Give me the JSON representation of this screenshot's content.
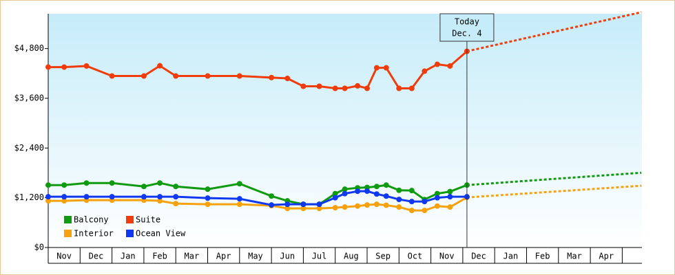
{
  "chart_data": {
    "type": "line",
    "categories": [
      "Nov",
      "Dec",
      "Jan",
      "Feb",
      "Mar",
      "Apr",
      "May",
      "Jun",
      "Jul",
      "Aug",
      "Sep",
      "Oct",
      "Nov",
      "Dec",
      "Jan",
      "Feb",
      "Mar",
      "Apr"
    ],
    "xlim": [
      0,
      18.6
    ],
    "ylim": [
      0,
      5640
    ],
    "yticks": [
      {
        "value": 0,
        "label": "$0"
      },
      {
        "value": 1200,
        "label": "$1,200"
      },
      {
        "value": 2400,
        "label": "$2,400"
      },
      {
        "value": 3600,
        "label": "$3,600"
      },
      {
        "value": 4800,
        "label": "$4,800"
      }
    ],
    "x": [
      0,
      0.5,
      1.2,
      2,
      3,
      3.5,
      4,
      5,
      6,
      7,
      7.5,
      8,
      8.5,
      9,
      9.3,
      9.7,
      10,
      10.3,
      10.6,
      11,
      11.4,
      11.8,
      12.2,
      12.6,
      13.13
    ],
    "series": [
      {
        "name": "Balcony",
        "color": "#0f9a0f",
        "forecast": 1804,
        "values": [
          1506,
          1506,
          1556,
          1556,
          1473,
          1556,
          1473,
          1407,
          1539,
          1241,
          1125,
          1043,
          1043,
          1300,
          1407,
          1440,
          1450,
          1473,
          1506,
          1380,
          1374,
          1158,
          1300,
          1350,
          1506
        ]
      },
      {
        "name": "Suite",
        "color": "#f03c0a",
        "forecast": 5677,
        "values": [
          4353,
          4353,
          4380,
          4138,
          4138,
          4385,
          4138,
          4138,
          4138,
          4100,
          4080,
          3890,
          3890,
          3840,
          3840,
          3900,
          3840,
          4336,
          4336,
          3840,
          3840,
          4254,
          4420,
          4380,
          4734
        ]
      },
      {
        "name": "Interior",
        "color": "#f5a20e",
        "forecast": 1490,
        "values": [
          1125,
          1125,
          1142,
          1142,
          1142,
          1125,
          1059,
          1043,
          1043,
          1010,
          943,
          943,
          943,
          960,
          976,
          1000,
          1026,
          1043,
          1020,
          976,
          894,
          894,
          1000,
          976,
          1208
        ]
      },
      {
        "name": "Ocean View",
        "color": "#1038f0",
        "values": [
          1225,
          1225,
          1225,
          1225,
          1225,
          1225,
          1225,
          1192,
          1175,
          1026,
          1043,
          1043,
          1043,
          1200,
          1300,
          1357,
          1360,
          1290,
          1240,
          1160,
          1109,
          1109,
          1200,
          1225,
          1225
        ]
      }
    ],
    "forecast_x": 18.6,
    "today_x": 13.13,
    "annotation": [
      "Today",
      "Dec. 4"
    ]
  }
}
